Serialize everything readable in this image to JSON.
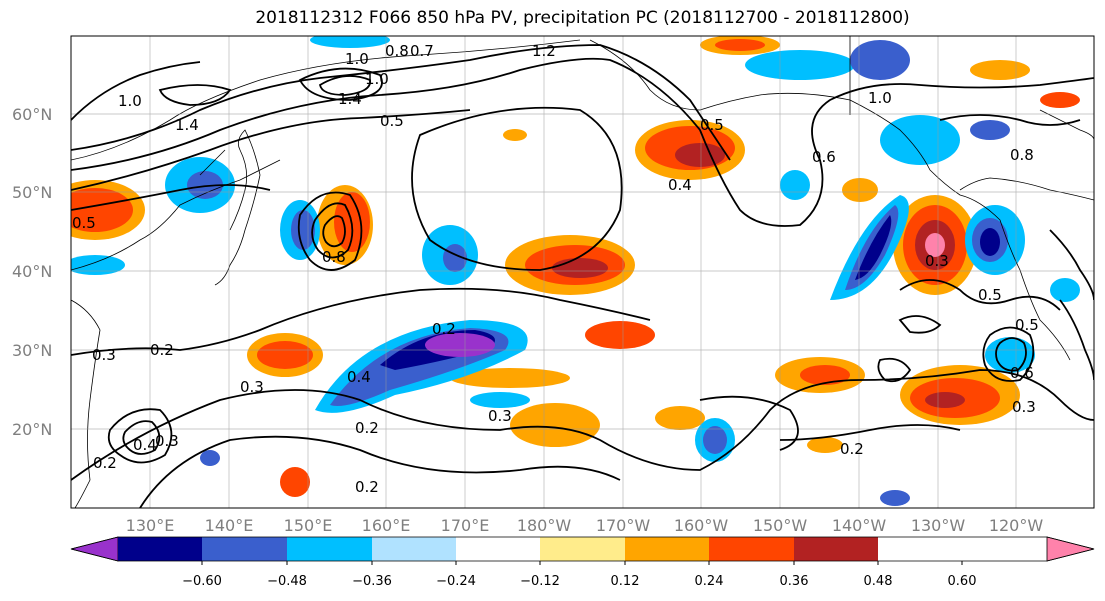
{
  "title": "2018112312 F066 850 hPa PV, precipitation PC (2018112700 - 2018112800)",
  "lat_ticks": [
    "60°N",
    "50°N",
    "40°N",
    "30°N",
    "20°N"
  ],
  "lon_ticks": [
    "130°E",
    "140°E",
    "150°E",
    "160°E",
    "170°E",
    "180°W",
    "170°W",
    "160°W",
    "150°W",
    "140°W",
    "130°W",
    "120°W"
  ],
  "colorbar": {
    "colors": [
      "#9932cc",
      "#00008b",
      "#3a5fcd",
      "#00bfff",
      "#b0e2ff",
      "#ffffff",
      "#ffec8b",
      "#ffa500",
      "#ff4500",
      "#b22222",
      "#ff82ab"
    ],
    "tick_labels": [
      "−0.60",
      "−0.48",
      "−0.36",
      "−0.24",
      "−0.12",
      "0.12",
      "0.24",
      "0.36",
      "0.48",
      "0.60"
    ]
  },
  "contour_labels": [
    "1.0",
    "0.8",
    "0.7",
    "1.0",
    "1.4",
    "1.0",
    "1.4",
    "0.5",
    "0.4",
    "0.6",
    "1.0",
    "0.8",
    "0.8",
    "0.3",
    "0.5",
    "0.2",
    "0.4",
    "0.3",
    "0.3",
    "0.2",
    "0.2",
    "0.4",
    "0.3",
    "0.2",
    "0.3",
    "0.6",
    "0.5",
    "0.3",
    "1.2",
    "0.2",
    "0.2",
    "0.5",
    "0.5"
  ]
}
